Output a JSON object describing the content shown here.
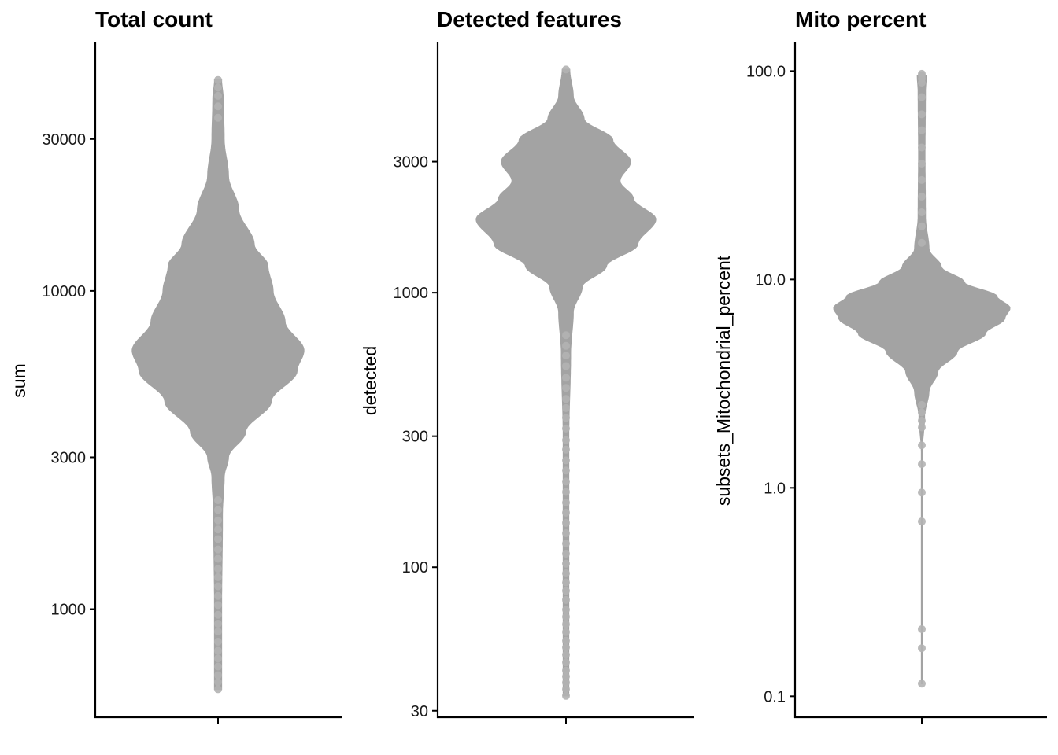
{
  "chart_data": [
    {
      "type": "violin",
      "title": "Total count",
      "xlabel": "",
      "ylabel": "sum",
      "yscale": "log10",
      "ylim": [
        460,
        60000
      ],
      "yticks": [
        1000,
        3000,
        10000,
        30000
      ],
      "ytick_labels": [
        "1000",
        "3000",
        "10000",
        "30000"
      ],
      "fill_color": "#a3a3a3",
      "point_color": "#b3b3b3",
      "violin_profile": [
        {
          "y": 560,
          "halfwidth": 0.04
        },
        {
          "y": 1000,
          "halfwidth": 0.04
        },
        {
          "y": 2000,
          "halfwidth": 0.05
        },
        {
          "y": 2600,
          "halfwidth": 0.07
        },
        {
          "y": 3000,
          "halfwidth": 0.12
        },
        {
          "y": 3600,
          "halfwidth": 0.32
        },
        {
          "y": 4500,
          "halfwidth": 0.62
        },
        {
          "y": 5600,
          "halfwidth": 0.92
        },
        {
          "y": 6500,
          "halfwidth": 1.0
        },
        {
          "y": 8000,
          "halfwidth": 0.78
        },
        {
          "y": 10000,
          "halfwidth": 0.64
        },
        {
          "y": 12000,
          "halfwidth": 0.58
        },
        {
          "y": 14000,
          "halfwidth": 0.42
        },
        {
          "y": 18000,
          "halfwidth": 0.24
        },
        {
          "y": 23000,
          "halfwidth": 0.12
        },
        {
          "y": 30000,
          "halfwidth": 0.07
        },
        {
          "y": 40000,
          "halfwidth": 0.06
        },
        {
          "y": 46000,
          "halfwidth": 0.04
        }
      ],
      "outliers": [
        560,
        590,
        620,
        660,
        700,
        740,
        790,
        850,
        900,
        960,
        1030,
        1100,
        1180,
        1260,
        1340,
        1440,
        1540,
        1660,
        1780,
        1900,
        2050,
        2200,
        35000,
        38000,
        41000,
        43500,
        46000
      ]
    },
    {
      "type": "violin",
      "title": "Detected features",
      "xlabel": "",
      "ylabel": "detected",
      "yscale": "log10",
      "ylim": [
        28.6,
        8100
      ],
      "yticks": [
        30,
        100,
        300,
        1000,
        3000
      ],
      "ytick_labels": [
        "30",
        "100",
        "300",
        "1000",
        "3000"
      ],
      "fill_color": "#a3a3a3",
      "point_color": "#b3b3b3",
      "violin_profile": [
        {
          "y": 34,
          "halfwidth": 0.03
        },
        {
          "y": 300,
          "halfwidth": 0.03
        },
        {
          "y": 600,
          "halfwidth": 0.05
        },
        {
          "y": 850,
          "halfwidth": 0.08
        },
        {
          "y": 1050,
          "halfwidth": 0.18
        },
        {
          "y": 1250,
          "halfwidth": 0.45
        },
        {
          "y": 1500,
          "halfwidth": 0.8
        },
        {
          "y": 1850,
          "halfwidth": 1.0
        },
        {
          "y": 2200,
          "halfwidth": 0.75
        },
        {
          "y": 2550,
          "halfwidth": 0.6
        },
        {
          "y": 3000,
          "halfwidth": 0.72
        },
        {
          "y": 3600,
          "halfwidth": 0.52
        },
        {
          "y": 4300,
          "halfwidth": 0.2
        },
        {
          "y": 5200,
          "halfwidth": 0.08
        },
        {
          "y": 6500,
          "halfwidth": 0.04
        }
      ],
      "outliers": [
        34,
        36,
        38,
        40,
        42,
        45,
        48,
        51,
        54,
        58,
        62,
        66,
        70,
        76,
        82,
        88,
        95,
        103,
        112,
        122,
        133,
        145,
        158,
        172,
        188,
        205,
        225,
        245,
        268,
        290,
        320,
        350,
        380,
        410,
        450,
        490,
        540,
        590,
        640,
        700,
        6500
      ]
    },
    {
      "type": "violin",
      "title": "Mito percent",
      "xlabel": "",
      "ylabel": "subsets_Mitochondrial_percent",
      "yscale": "log10",
      "ylim": [
        0.08,
        136
      ],
      "yticks": [
        0.1,
        1.0,
        10.0,
        100.0
      ],
      "ytick_labels": [
        "0.1",
        "1.0",
        "10.0",
        "100.0"
      ],
      "fill_color": "#a3a3a3",
      "point_color": "#b3b3b3",
      "violin_profile": [
        {
          "y": 0.115,
          "halfwidth": 0.004
        },
        {
          "y": 1.5,
          "halfwidth": 0.004
        },
        {
          "y": 2.2,
          "halfwidth": 0.03
        },
        {
          "y": 2.9,
          "halfwidth": 0.08
        },
        {
          "y": 3.6,
          "halfwidth": 0.18
        },
        {
          "y": 4.5,
          "halfwidth": 0.4
        },
        {
          "y": 5.5,
          "halfwidth": 0.72
        },
        {
          "y": 6.5,
          "halfwidth": 0.94
        },
        {
          "y": 7.3,
          "halfwidth": 1.0
        },
        {
          "y": 8.3,
          "halfwidth": 0.85
        },
        {
          "y": 9.7,
          "halfwidth": 0.48
        },
        {
          "y": 11.5,
          "halfwidth": 0.22
        },
        {
          "y": 14,
          "halfwidth": 0.08
        },
        {
          "y": 20,
          "halfwidth": 0.04
        },
        {
          "y": 40,
          "halfwidth": 0.035
        },
        {
          "y": 80,
          "halfwidth": 0.04
        },
        {
          "y": 95,
          "halfwidth": 0.05
        }
      ],
      "outliers": [
        0.115,
        0.17,
        0.21,
        0.69,
        0.95,
        1.3,
        1.6,
        1.95,
        2.1,
        2.3,
        2.5,
        15,
        18,
        21,
        25,
        30,
        36,
        43,
        52,
        62,
        75,
        88,
        92,
        95,
        97
      ]
    }
  ]
}
